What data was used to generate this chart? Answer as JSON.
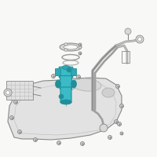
{
  "bg_color": "#f8f8f6",
  "highlight_color": "#3abbc6",
  "highlight_dark": "#1f8f9a",
  "highlight_mid": "#2fa8b4",
  "line_color": "#555555",
  "tank_fill": "#e2e2e2",
  "tank_stroke": "#888888",
  "part_fill": "#d8d8d8",
  "part_stroke": "#888888",
  "screw_fill": "#cccccc",
  "screw_stroke": "#777777",
  "pipe_color": "#888888",
  "grid_color": "#bbbbbb"
}
